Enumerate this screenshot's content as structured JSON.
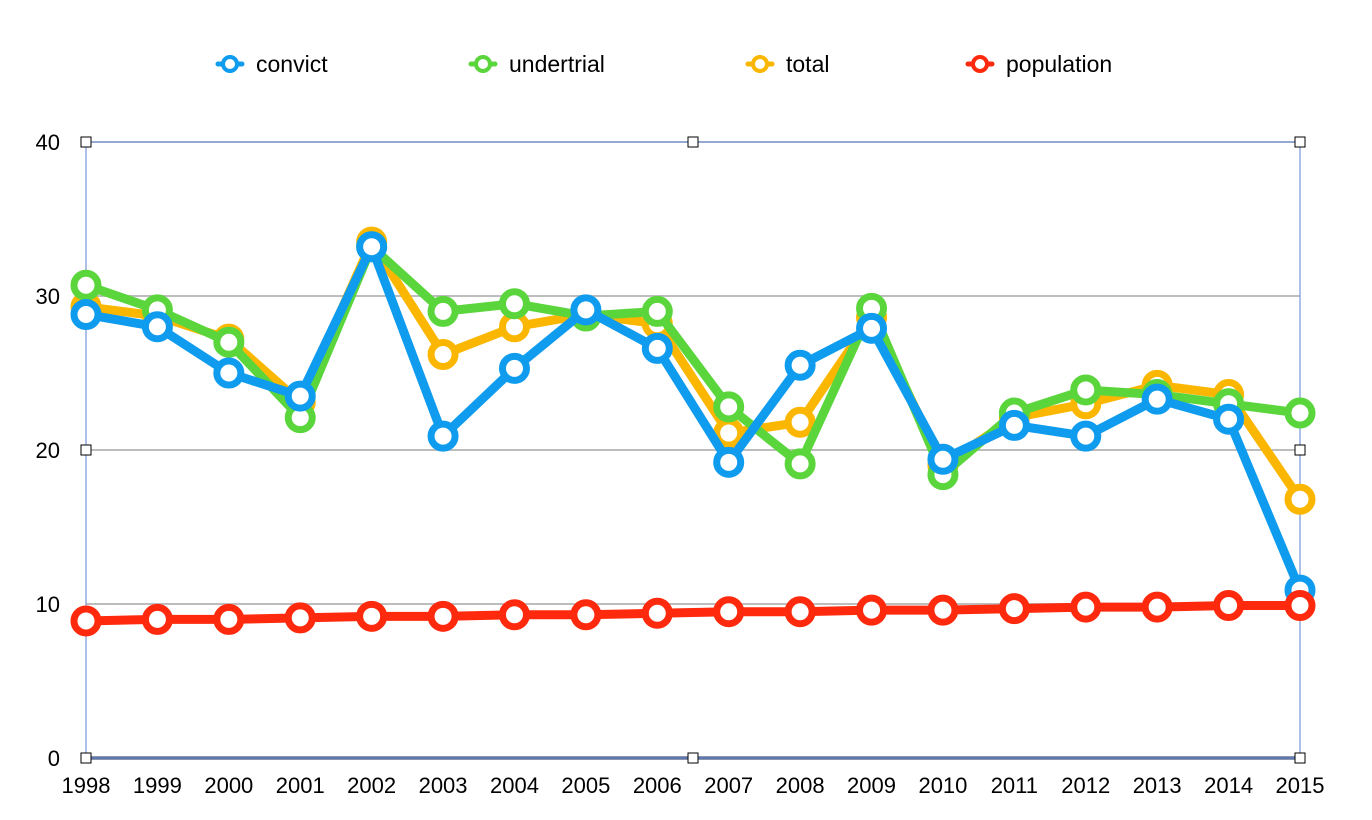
{
  "chart_data": {
    "type": "line",
    "title": "",
    "xlabel": "",
    "ylabel": "",
    "categories": [
      "1998",
      "1999",
      "2000",
      "2001",
      "2002",
      "2003",
      "2004",
      "2005",
      "2006",
      "2007",
      "2008",
      "2009",
      "2010",
      "2011",
      "2012",
      "2013",
      "2014",
      "2015"
    ],
    "ylim": [
      0,
      40
    ],
    "yticks": [
      0,
      10,
      20,
      30,
      40
    ],
    "grid": true,
    "legend_position": "top",
    "series": [
      {
        "name": "total",
        "color": "#FBB700",
        "values": [
          29.3,
          28.7,
          27.2,
          23.1,
          33.5,
          26.2,
          28.0,
          28.8,
          28.2,
          21.1,
          21.8,
          28.6,
          19.0,
          22.1,
          23.0,
          24.2,
          23.6,
          16.8
        ]
      },
      {
        "name": "undertrial",
        "color": "#5AD63C",
        "values": [
          30.7,
          29.1,
          27.0,
          22.1,
          33.2,
          29.0,
          29.5,
          28.7,
          29.0,
          22.8,
          19.1,
          29.2,
          18.4,
          22.4,
          23.9,
          23.6,
          23.0,
          22.4
        ]
      },
      {
        "name": "convict",
        "color": "#0F9BEE",
        "values": [
          28.8,
          28.0,
          25.0,
          23.5,
          33.2,
          20.9,
          25.3,
          29.1,
          26.6,
          19.2,
          25.5,
          27.9,
          19.4,
          21.6,
          20.9,
          23.3,
          22.0,
          10.9
        ]
      },
      {
        "name": "population",
        "color": "#FF2A0D",
        "values": [
          8.9,
          9.0,
          9.0,
          9.1,
          9.2,
          9.2,
          9.3,
          9.3,
          9.4,
          9.5,
          9.5,
          9.6,
          9.6,
          9.7,
          9.8,
          9.8,
          9.9,
          9.9
        ]
      }
    ],
    "legend": [
      {
        "label": "convict",
        "color": "#0F9BEE"
      },
      {
        "label": "undertrial",
        "color": "#5AD63C"
      },
      {
        "label": "total",
        "color": "#FBB700"
      },
      {
        "label": "population",
        "color": "#FF2A0D"
      }
    ]
  }
}
